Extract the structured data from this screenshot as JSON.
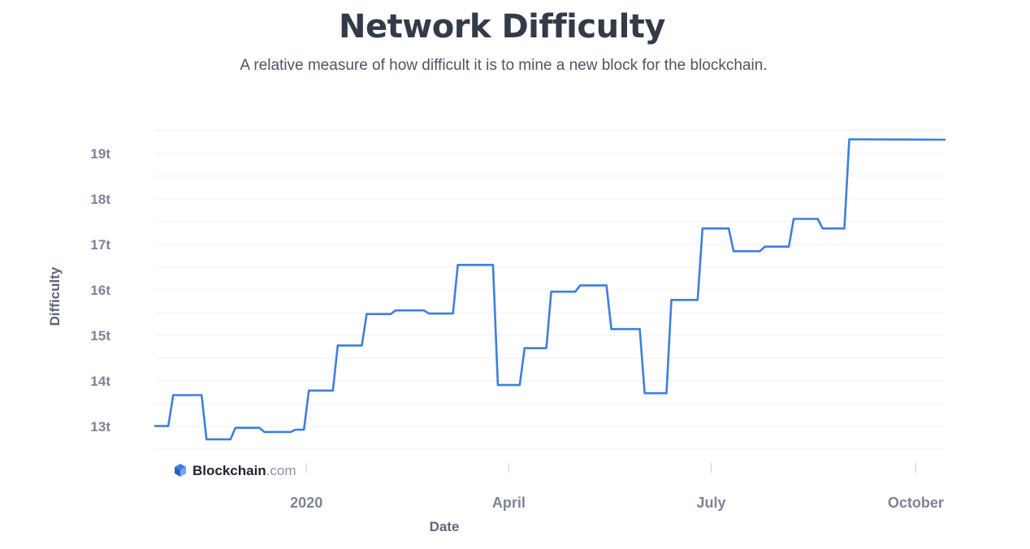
{
  "header": {
    "title": "Network Difficulty",
    "subtitle": "A relative measure of how difficult it is to mine a new block for the blockchain."
  },
  "branding": {
    "name": "Blockchain",
    "suffix": ".com"
  },
  "colors": {
    "line": "#3d7fe0",
    "grid": "#eef0f4",
    "tick": "#cfd3db"
  },
  "chart_data": {
    "type": "line",
    "xlabel": "Date",
    "ylabel": "Difficulty",
    "x_ticks": [
      {
        "label": "2020",
        "date": "2020-01-01"
      },
      {
        "label": "April",
        "date": "2020-04-01"
      },
      {
        "label": "July",
        "date": "2020-07-01"
      },
      {
        "label": "October",
        "date": "2020-10-01"
      }
    ],
    "xlim": [
      "2019-10-25",
      "2020-10-14"
    ],
    "y_ticks": [
      {
        "label": "13t",
        "value": 13
      },
      {
        "label": "14t",
        "value": 14
      },
      {
        "label": "15t",
        "value": 15
      },
      {
        "label": "16t",
        "value": 16
      },
      {
        "label": "17t",
        "value": 17
      },
      {
        "label": "18t",
        "value": 18
      },
      {
        "label": "19t",
        "value": 19
      }
    ],
    "ylim": [
      12.2,
      19.55
    ],
    "unit": "t",
    "grid": true,
    "series": [
      {
        "step": true,
        "points": [
          {
            "date": "2019-10-25",
            "value": 13.01
          },
          {
            "date": "2019-11-01",
            "value": 13.69
          },
          {
            "date": "2019-11-16",
            "value": 12.72
          },
          {
            "date": "2019-11-29",
            "value": 12.97
          },
          {
            "date": "2019-12-12",
            "value": 12.88
          },
          {
            "date": "2019-12-26",
            "value": 12.93
          },
          {
            "date": "2020-01-01",
            "value": 13.79
          },
          {
            "date": "2020-01-14",
            "value": 14.78
          },
          {
            "date": "2020-01-27",
            "value": 15.47
          },
          {
            "date": "2020-02-09",
            "value": 15.55
          },
          {
            "date": "2020-02-24",
            "value": 15.48
          },
          {
            "date": "2020-03-08",
            "value": 16.55
          },
          {
            "date": "2020-03-26",
            "value": 13.91
          },
          {
            "date": "2020-04-07",
            "value": 14.72
          },
          {
            "date": "2020-04-19",
            "value": 15.96
          },
          {
            "date": "2020-05-02",
            "value": 16.1
          },
          {
            "date": "2020-05-16",
            "value": 15.14
          },
          {
            "date": "2020-05-31",
            "value": 13.73
          },
          {
            "date": "2020-06-12",
            "value": 15.78
          },
          {
            "date": "2020-06-26",
            "value": 17.35
          },
          {
            "date": "2020-07-10",
            "value": 16.85
          },
          {
            "date": "2020-07-24",
            "value": 16.95
          },
          {
            "date": "2020-08-06",
            "value": 17.56
          },
          {
            "date": "2020-08-19",
            "value": 17.35
          },
          {
            "date": "2020-08-31",
            "value": 19.31
          },
          {
            "date": "2020-10-14",
            "value": 19.3
          }
        ]
      }
    ]
  }
}
